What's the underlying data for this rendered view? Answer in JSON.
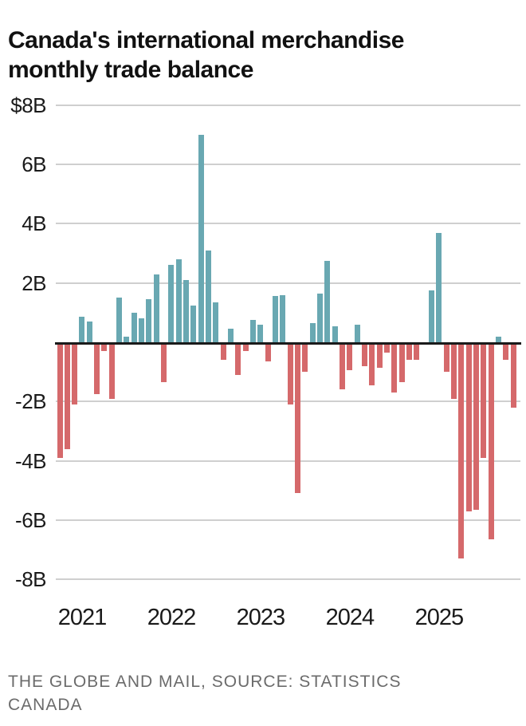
{
  "title": {
    "line1": "Canada's international merchandise",
    "line2": "monthly trade balance"
  },
  "footer": {
    "line1": "THE GLOBE AND MAIL, SOURCE: STATISTICS",
    "line2": "CANADA"
  },
  "colors": {
    "surplus_teal": "#69A8B2",
    "deficit_red": "#D5696B",
    "gridline": "#CFCFCF",
    "zero_axis": "#1A1A1A",
    "text": "#1A1A1A",
    "source_text": "#6B6B6B"
  },
  "chart_data": {
    "type": "bar",
    "title": "Canada's international merchandise monthly trade balance",
    "unit": "$ billions (CAD)",
    "x": [
      "2020-10",
      "2020-11",
      "2020-12",
      "2021-01",
      "2021-02",
      "2021-03",
      "2021-04",
      "2021-05",
      "2021-06",
      "2021-07",
      "2021-08",
      "2021-09",
      "2021-10",
      "2021-11",
      "2021-12",
      "2022-01",
      "2022-02",
      "2022-03",
      "2022-04",
      "2022-05",
      "2022-06",
      "2022-07",
      "2022-08",
      "2022-09",
      "2022-10",
      "2022-11",
      "2022-12",
      "2023-01",
      "2023-02",
      "2023-03",
      "2023-04",
      "2023-05",
      "2023-06",
      "2023-07",
      "2023-08",
      "2023-09",
      "2023-10",
      "2023-11",
      "2023-12",
      "2024-01",
      "2024-02",
      "2024-03",
      "2024-04",
      "2024-05",
      "2024-06",
      "2024-07",
      "2024-08",
      "2024-09",
      "2024-10",
      "2024-11",
      "2024-12",
      "2025-01",
      "2025-02",
      "2025-03",
      "2025-04",
      "2025-05",
      "2025-06",
      "2025-07",
      "2025-08",
      "2025-09",
      "2025-10",
      "2025-11"
    ],
    "values": [
      -3.9,
      -3.6,
      -2.1,
      0.85,
      0.7,
      -1.75,
      -0.3,
      -1.9,
      1.5,
      0.2,
      1.0,
      0.8,
      1.45,
      2.3,
      -1.35,
      2.6,
      2.8,
      2.1,
      1.25,
      7.0,
      3.1,
      1.35,
      -0.6,
      0.45,
      -1.1,
      -0.3,
      0.75,
      0.6,
      -0.65,
      1.55,
      1.6,
      -2.1,
      -5.1,
      -1.0,
      0.65,
      1.65,
      2.75,
      0.55,
      -1.6,
      -0.95,
      0.6,
      -0.8,
      -1.45,
      -0.85,
      -0.35,
      -1.7,
      -1.35,
      -0.6,
      -0.6,
      0.0,
      1.75,
      3.7,
      -1.0,
      -1.9,
      -7.3,
      -5.7,
      -5.65,
      -3.9,
      -6.65,
      0.2,
      -0.6,
      -2.2
    ],
    "ylim": [
      -8,
      8
    ],
    "ytick_values": [
      8,
      6,
      4,
      2,
      -2,
      -4,
      -6,
      -8
    ],
    "ytick_labels": [
      "$8B",
      "6B",
      "4B",
      "2B",
      "-2B",
      "-4B",
      "-6B",
      "-8B"
    ],
    "xtick_labels": [
      "2021",
      "2022",
      "2023",
      "2024",
      "2025"
    ],
    "xtick_month_index": [
      3,
      15,
      27,
      39,
      51
    ],
    "grid": true,
    "legend": "none",
    "positive_color": "#69A8B2",
    "negative_color": "#D5696B"
  }
}
